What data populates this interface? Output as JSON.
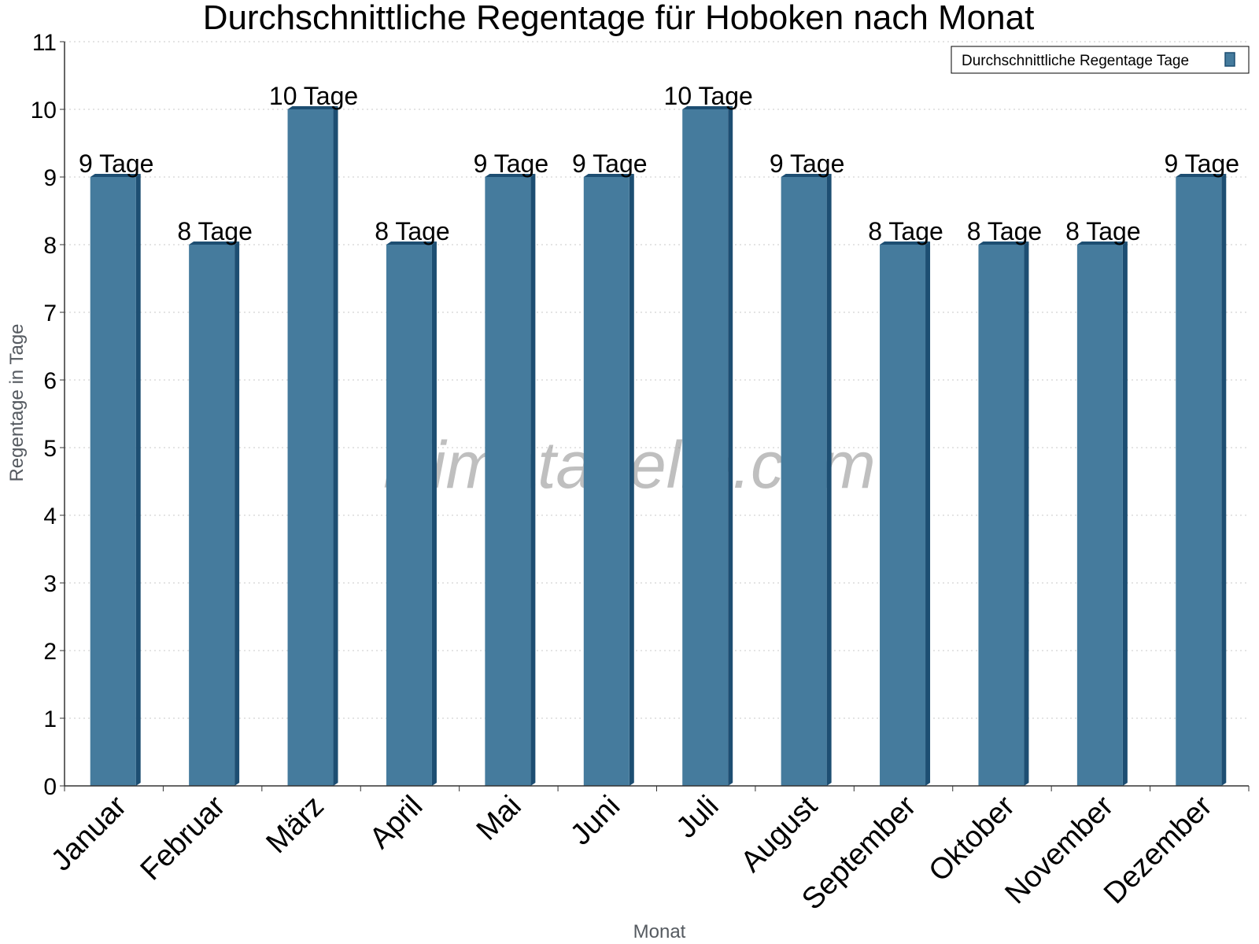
{
  "watermark": "klimatabelle.com",
  "colors": {
    "bar_front": "#457b9d",
    "bar_side": "#1d4e72",
    "grid": "#c8c8c8",
    "axis": "#333333"
  },
  "chart_data": {
    "type": "bar",
    "title": "Durchschnittliche Regentage für Hoboken nach Monat",
    "xlabel": "Monat",
    "ylabel": "Regentage in Tage",
    "ylim": [
      0,
      11
    ],
    "yticks": [
      0,
      1,
      2,
      3,
      4,
      5,
      6,
      7,
      8,
      9,
      10,
      11
    ],
    "grid": true,
    "legend_position": "top-right",
    "categories": [
      "Januar",
      "Februar",
      "März",
      "April",
      "Mai",
      "Juni",
      "Juli",
      "August",
      "September",
      "Oktober",
      "November",
      "Dezember"
    ],
    "series": [
      {
        "name": "Durchschnittliche Regentage Tage",
        "values": [
          9,
          8,
          10,
          8,
          9,
          9,
          10,
          9,
          8,
          8,
          8,
          9
        ],
        "labels": [
          "9 Tage",
          "8 Tage",
          "10 Tage",
          "8 Tage",
          "9 Tage",
          "9 Tage",
          "10 Tage",
          "9 Tage",
          "8 Tage",
          "8 Tage",
          "8 Tage",
          "9 Tage"
        ]
      }
    ]
  }
}
